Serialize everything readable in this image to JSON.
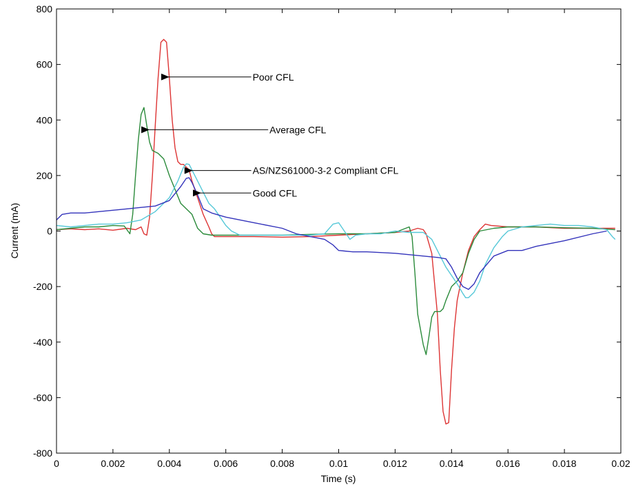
{
  "chart_data": {
    "type": "line",
    "title": "",
    "xlabel": "Time (s)",
    "ylabel": "Current (mA)",
    "xlim": [
      0,
      0.02
    ],
    "ylim": [
      -800,
      800
    ],
    "xticks": [
      0,
      0.002,
      0.004,
      0.006,
      0.008,
      0.01,
      0.012,
      0.014,
      0.016,
      0.018,
      0.02
    ],
    "xtick_labels": [
      "0",
      "0.002",
      "0.004",
      "0.006",
      "0.008",
      "0.01",
      "0.012",
      "0.014",
      "0.016",
      "0.018",
      "0.02"
    ],
    "yticks": [
      -800,
      -600,
      -400,
      -200,
      0,
      200,
      400,
      600,
      800
    ],
    "ytick_labels": [
      "-800",
      "-600",
      "-400",
      "-200",
      "0",
      "200",
      "400",
      "600",
      "800"
    ],
    "grid": false,
    "series": [
      {
        "color": "#dd3333",
        "points": [
          [
            0,
            5
          ],
          [
            0.0005,
            8
          ],
          [
            0.001,
            5
          ],
          [
            0.0015,
            8
          ],
          [
            0.002,
            3
          ],
          [
            0.0025,
            10
          ],
          [
            0.0028,
            5
          ],
          [
            0.003,
            15
          ],
          [
            0.0031,
            -10
          ],
          [
            0.0032,
            -15
          ],
          [
            0.0033,
            50
          ],
          [
            0.0034,
            200
          ],
          [
            0.0035,
            380
          ],
          [
            0.0036,
            550
          ],
          [
            0.0037,
            680
          ],
          [
            0.0038,
            690
          ],
          [
            0.0039,
            680
          ],
          [
            0.004,
            550
          ],
          [
            0.0041,
            400
          ],
          [
            0.0042,
            300
          ],
          [
            0.0043,
            250
          ],
          [
            0.0044,
            240
          ],
          [
            0.0045,
            240
          ],
          [
            0.0046,
            230
          ],
          [
            0.0047,
            220
          ],
          [
            0.0048,
            180
          ],
          [
            0.005,
            120
          ],
          [
            0.0052,
            60
          ],
          [
            0.0054,
            15
          ],
          [
            0.0055,
            -10
          ],
          [
            0.0056,
            -20
          ],
          [
            0.006,
            -20
          ],
          [
            0.007,
            -20
          ],
          [
            0.008,
            -22
          ],
          [
            0.009,
            -20
          ],
          [
            0.01,
            -15
          ],
          [
            0.011,
            -10
          ],
          [
            0.012,
            -5
          ],
          [
            0.0125,
            0
          ],
          [
            0.0128,
            10
          ],
          [
            0.013,
            5
          ],
          [
            0.0131,
            -10
          ],
          [
            0.0133,
            -80
          ],
          [
            0.0135,
            -300
          ],
          [
            0.0136,
            -500
          ],
          [
            0.0137,
            -650
          ],
          [
            0.0138,
            -695
          ],
          [
            0.0139,
            -690
          ],
          [
            0.014,
            -500
          ],
          [
            0.0141,
            -350
          ],
          [
            0.0142,
            -250
          ],
          [
            0.0144,
            -150
          ],
          [
            0.0146,
            -70
          ],
          [
            0.0148,
            -20
          ],
          [
            0.015,
            5
          ],
          [
            0.0152,
            25
          ],
          [
            0.0154,
            20
          ],
          [
            0.016,
            15
          ],
          [
            0.017,
            15
          ],
          [
            0.018,
            10
          ],
          [
            0.019,
            10
          ],
          [
            0.0198,
            10
          ]
        ]
      },
      {
        "color": "#2a8a3a",
        "points": [
          [
            0,
            5
          ],
          [
            0.0005,
            10
          ],
          [
            0.001,
            15
          ],
          [
            0.0015,
            15
          ],
          [
            0.002,
            20
          ],
          [
            0.0024,
            18
          ],
          [
            0.0026,
            -10
          ],
          [
            0.0027,
            60
          ],
          [
            0.0028,
            200
          ],
          [
            0.0029,
            330
          ],
          [
            0.003,
            420
          ],
          [
            0.0031,
            445
          ],
          [
            0.0032,
            380
          ],
          [
            0.0033,
            320
          ],
          [
            0.0034,
            290
          ],
          [
            0.0036,
            280
          ],
          [
            0.0038,
            260
          ],
          [
            0.004,
            200
          ],
          [
            0.0042,
            150
          ],
          [
            0.0044,
            100
          ],
          [
            0.0046,
            80
          ],
          [
            0.0048,
            60
          ],
          [
            0.005,
            10
          ],
          [
            0.0052,
            -10
          ],
          [
            0.0055,
            -15
          ],
          [
            0.006,
            -15
          ],
          [
            0.007,
            -15
          ],
          [
            0.008,
            -15
          ],
          [
            0.009,
            -12
          ],
          [
            0.01,
            -10
          ],
          [
            0.011,
            -10
          ],
          [
            0.012,
            -5
          ],
          [
            0.0125,
            15
          ],
          [
            0.0126,
            -20
          ],
          [
            0.0127,
            -150
          ],
          [
            0.0128,
            -300
          ],
          [
            0.013,
            -410
          ],
          [
            0.0131,
            -445
          ],
          [
            0.0132,
            -380
          ],
          [
            0.0133,
            -310
          ],
          [
            0.0134,
            -290
          ],
          [
            0.0136,
            -290
          ],
          [
            0.0137,
            -280
          ],
          [
            0.0138,
            -250
          ],
          [
            0.014,
            -200
          ],
          [
            0.0142,
            -180
          ],
          [
            0.0144,
            -150
          ],
          [
            0.0146,
            -80
          ],
          [
            0.0148,
            -30
          ],
          [
            0.015,
            0
          ],
          [
            0.0155,
            10
          ],
          [
            0.016,
            15
          ],
          [
            0.017,
            15
          ],
          [
            0.018,
            12
          ],
          [
            0.019,
            10
          ],
          [
            0.0198,
            5
          ]
        ]
      },
      {
        "color": "#55c8d8",
        "points": [
          [
            0,
            20
          ],
          [
            0.0005,
            15
          ],
          [
            0.001,
            20
          ],
          [
            0.0015,
            25
          ],
          [
            0.002,
            25
          ],
          [
            0.0025,
            30
          ],
          [
            0.003,
            40
          ],
          [
            0.0035,
            70
          ],
          [
            0.004,
            120
          ],
          [
            0.0043,
            180
          ],
          [
            0.0045,
            230
          ],
          [
            0.0046,
            242
          ],
          [
            0.0047,
            240
          ],
          [
            0.0048,
            220
          ],
          [
            0.005,
            180
          ],
          [
            0.0052,
            140
          ],
          [
            0.0054,
            100
          ],
          [
            0.0056,
            80
          ],
          [
            0.0058,
            50
          ],
          [
            0.006,
            20
          ],
          [
            0.0062,
            0
          ],
          [
            0.0065,
            -15
          ],
          [
            0.007,
            -15
          ],
          [
            0.008,
            -15
          ],
          [
            0.009,
            -15
          ],
          [
            0.0095,
            -10
          ],
          [
            0.0098,
            25
          ],
          [
            0.01,
            30
          ],
          [
            0.0102,
            0
          ],
          [
            0.0104,
            -30
          ],
          [
            0.0106,
            -15
          ],
          [
            0.011,
            -10
          ],
          [
            0.0115,
            -10
          ],
          [
            0.012,
            0
          ],
          [
            0.0125,
            -5
          ],
          [
            0.013,
            -5
          ],
          [
            0.0133,
            -30
          ],
          [
            0.0136,
            -90
          ],
          [
            0.0138,
            -130
          ],
          [
            0.014,
            -160
          ],
          [
            0.0142,
            -190
          ],
          [
            0.0144,
            -225
          ],
          [
            0.0145,
            -240
          ],
          [
            0.0146,
            -240
          ],
          [
            0.0148,
            -220
          ],
          [
            0.015,
            -180
          ],
          [
            0.0152,
            -120
          ],
          [
            0.0155,
            -60
          ],
          [
            0.0158,
            -20
          ],
          [
            0.016,
            0
          ],
          [
            0.0165,
            15
          ],
          [
            0.017,
            20
          ],
          [
            0.0175,
            25
          ],
          [
            0.018,
            20
          ],
          [
            0.0185,
            20
          ],
          [
            0.019,
            15
          ],
          [
            0.0195,
            5
          ],
          [
            0.0197,
            -20
          ],
          [
            0.0198,
            -30
          ]
        ]
      },
      {
        "color": "#3333bb",
        "points": [
          [
            0,
            40
          ],
          [
            0.0002,
            60
          ],
          [
            0.0005,
            65
          ],
          [
            0.001,
            65
          ],
          [
            0.0015,
            70
          ],
          [
            0.002,
            75
          ],
          [
            0.0025,
            80
          ],
          [
            0.003,
            85
          ],
          [
            0.0035,
            90
          ],
          [
            0.004,
            110
          ],
          [
            0.0044,
            160
          ],
          [
            0.0046,
            190
          ],
          [
            0.0047,
            192
          ],
          [
            0.0048,
            175
          ],
          [
            0.005,
            130
          ],
          [
            0.0052,
            80
          ],
          [
            0.0055,
            65
          ],
          [
            0.006,
            50
          ],
          [
            0.007,
            30
          ],
          [
            0.008,
            10
          ],
          [
            0.0085,
            -10
          ],
          [
            0.009,
            -20
          ],
          [
            0.0095,
            -30
          ],
          [
            0.0098,
            -50
          ],
          [
            0.01,
            -70
          ],
          [
            0.0102,
            -72
          ],
          [
            0.0105,
            -75
          ],
          [
            0.011,
            -75
          ],
          [
            0.012,
            -80
          ],
          [
            0.013,
            -90
          ],
          [
            0.0135,
            -95
          ],
          [
            0.0138,
            -100
          ],
          [
            0.014,
            -130
          ],
          [
            0.0142,
            -170
          ],
          [
            0.0144,
            -200
          ],
          [
            0.0146,
            -210
          ],
          [
            0.0148,
            -190
          ],
          [
            0.015,
            -150
          ],
          [
            0.0155,
            -90
          ],
          [
            0.016,
            -70
          ],
          [
            0.0165,
            -70
          ],
          [
            0.017,
            -55
          ],
          [
            0.018,
            -35
          ],
          [
            0.019,
            -10
          ],
          [
            0.0195,
            0
          ]
        ]
      }
    ],
    "annotations": [
      {
        "text": "Poor CFL",
        "label_x": 0.00695,
        "label_y": 555,
        "arrow_to_x": 0.00395,
        "arrow_to_y": 555
      },
      {
        "text": "Average CFL",
        "label_x": 0.00755,
        "label_y": 365,
        "arrow_to_x": 0.00325,
        "arrow_to_y": 365
      },
      {
        "text": "AS/NZS61000-3-2 Compliant CFL",
        "label_x": 0.00695,
        "label_y": 218,
        "arrow_to_x": 0.00478,
        "arrow_to_y": 218
      },
      {
        "text": "Good CFL",
        "label_x": 0.00695,
        "label_y": 137,
        "arrow_to_x": 0.00508,
        "arrow_to_y": 137
      }
    ]
  }
}
